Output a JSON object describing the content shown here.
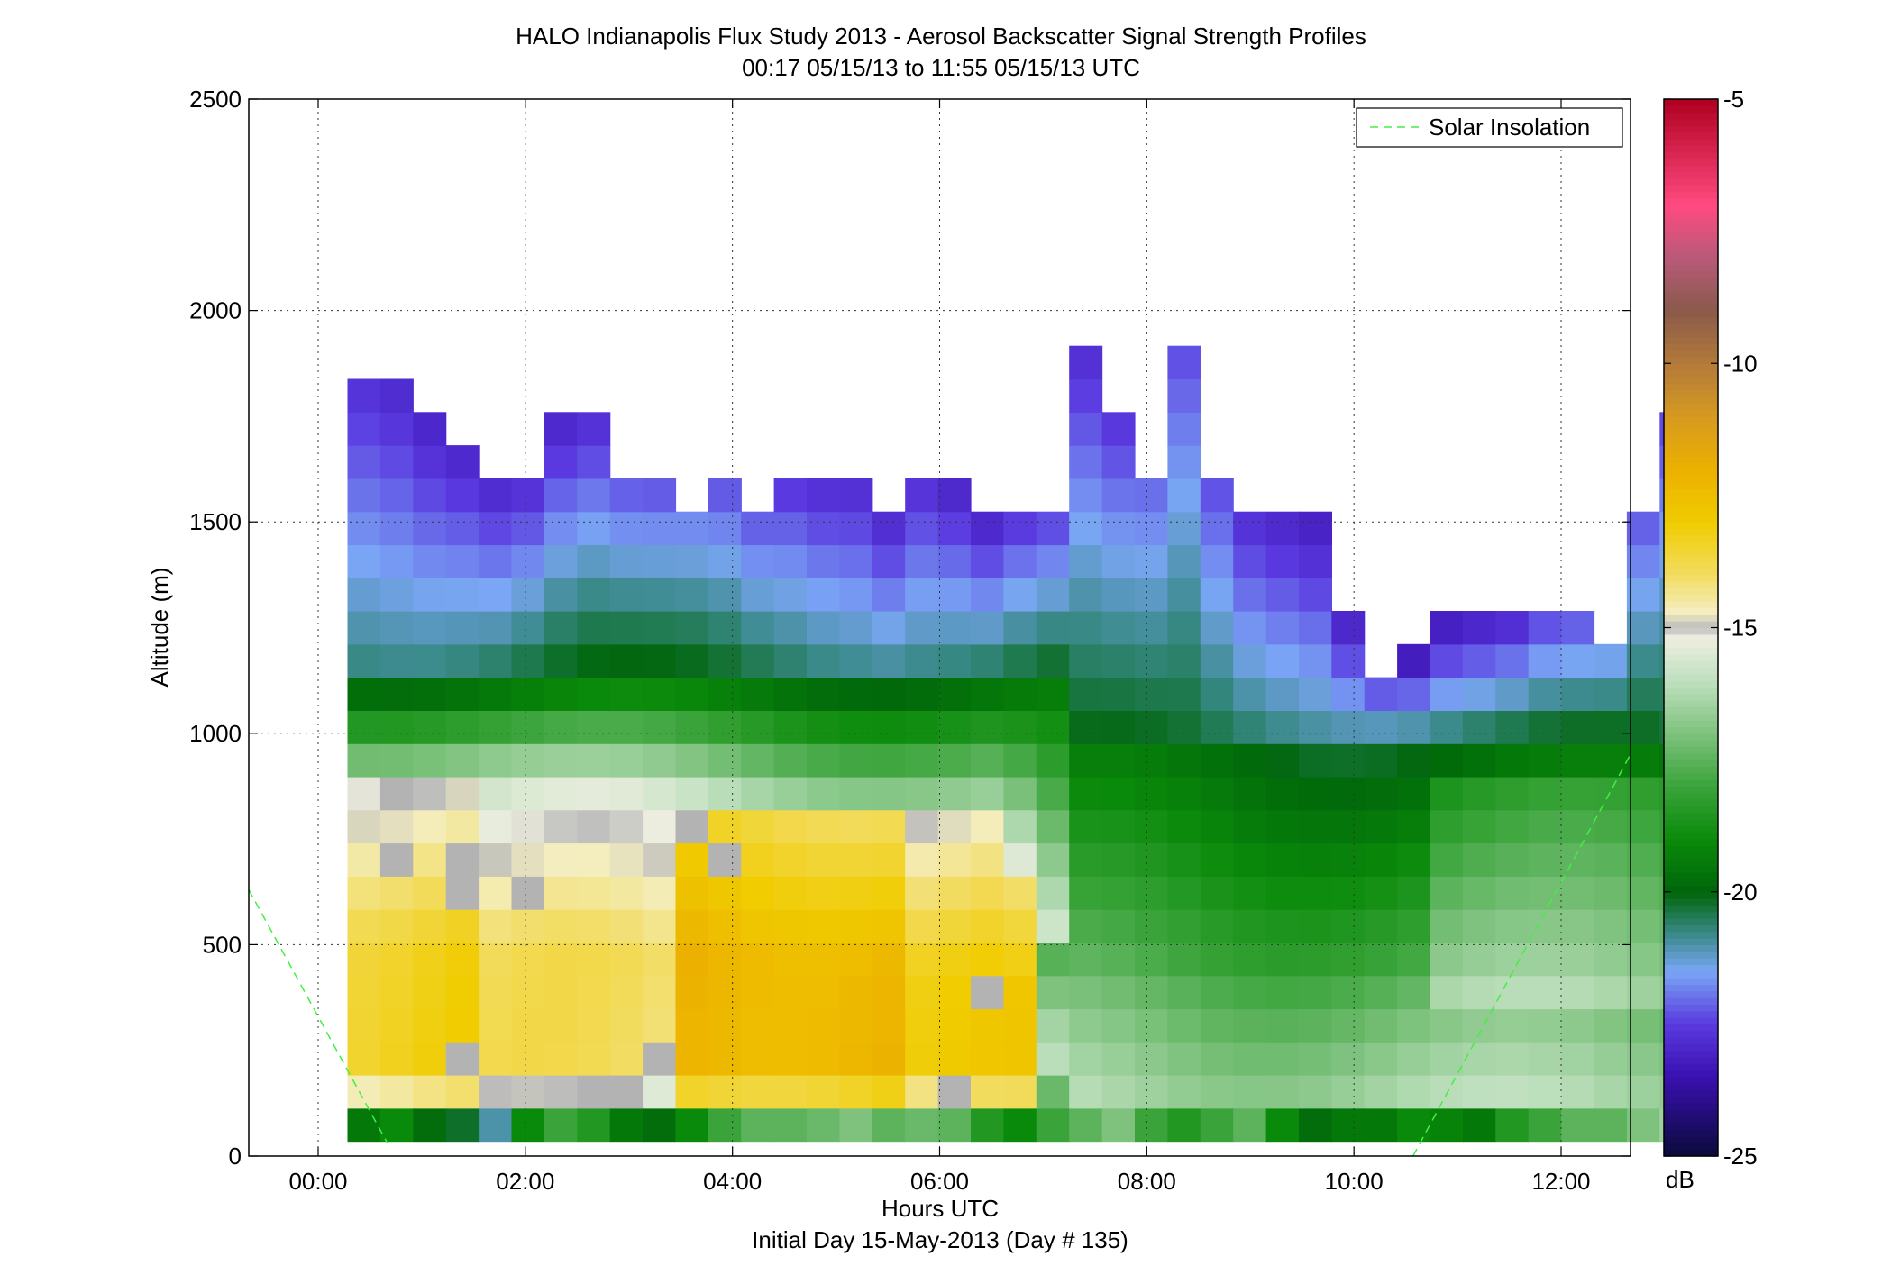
{
  "chart_data": {
    "type": "heatmap",
    "title": "HALO Indianapolis Flux Study 2013 - Aerosol Backscatter Signal Strength Profiles",
    "subtitle": "00:17 05/15/13 to 11:55 05/15/13  UTC",
    "xlabel": "Hours UTC",
    "xlabel2": "Initial Day 15-May-2013 (Day # 135)",
    "ylabel": "Altitude (m)",
    "xlim": [
      -0.67,
      12.67
    ],
    "ylim": [
      0,
      2500
    ],
    "x_ticks": [
      0,
      2,
      4,
      6,
      8,
      10,
      12
    ],
    "x_tick_labels": [
      "00:00",
      "02:00",
      "04:00",
      "06:00",
      "08:00",
      "10:00",
      "12:00"
    ],
    "y_ticks": [
      0,
      500,
      1000,
      1500,
      2000,
      2500
    ],
    "y_tick_labels": [
      "0",
      "500",
      "1000",
      "1500",
      "2000",
      "2500"
    ],
    "grid": true,
    "legend_position": "top-right",
    "legend": [
      {
        "label": "Solar Insolation",
        "color": "#44ee44",
        "style": "dashed"
      }
    ],
    "colorbar": {
      "label": "dB",
      "min": -25,
      "max": -5,
      "ticks": [
        -5,
        -10,
        -15,
        -20,
        -25
      ],
      "tick_labels": [
        "-5",
        "-10",
        "-15",
        "-20",
        "-25"
      ]
    },
    "time_start_hours": 0.283,
    "time_step_hours": 0.3167,
    "altitude_bin_m": 78.4,
    "altitude_start_m": 35,
    "missing_value": -99,
    "profile_tops_m": [
      1870,
      1870,
      1790,
      1730,
      1630,
      1630,
      1730,
      1730,
      1630,
      1600,
      1600,
      1600,
      1560,
      1600,
      1600,
      1630,
      1560,
      1700,
      1630,
      1520,
      1560,
      1560,
      1950,
      1750,
      1700,
      1950,
      1630,
      1490,
      1490,
      1490,
      1300,
      1180,
      1180,
      1260,
      1260,
      1260,
      1300,
      1300,
      1300,
      1560,
      1750
    ],
    "surface_layer_db": [
      -19.5,
      -19.0,
      -19.8,
      -20.2,
      -21.0,
      -19.0,
      -18.0,
      -18.5,
      -19.5,
      -19.8,
      -19.0,
      -18.0,
      -17.5,
      -17.5,
      -17.3,
      -17.0,
      -17.5,
      -17.3,
      -17.5,
      -18.5,
      -19.0,
      -18.0,
      -17.5,
      -17.0,
      -18.0,
      -18.5,
      -18.0,
      -17.5,
      -19.0,
      -19.8,
      -19.5,
      -19.5,
      -19.0,
      -19.2,
      -19.5,
      -18.5,
      -18.0,
      -17.5,
      -17.5,
      -17.0,
      -16.5
    ],
    "solar_insolation": [
      {
        "x": [
          -0.67,
          0.67
        ],
        "y": [
          630,
          30
        ]
      },
      {
        "x": [
          10.57,
          12.67
        ],
        "y": [
          0,
          950
        ]
      }
    ],
    "grey_bins": [
      [
        1,
        8
      ],
      [
        1,
        10
      ],
      [
        3,
        8
      ],
      [
        3,
        7
      ],
      [
        5,
        7
      ],
      [
        3,
        2
      ],
      [
        7,
        1
      ],
      [
        8,
        1
      ],
      [
        10,
        9
      ],
      [
        11,
        8
      ],
      [
        19,
        4
      ],
      [
        18,
        1
      ],
      [
        7,
        1
      ],
      [
        9,
        2
      ]
    ]
  }
}
